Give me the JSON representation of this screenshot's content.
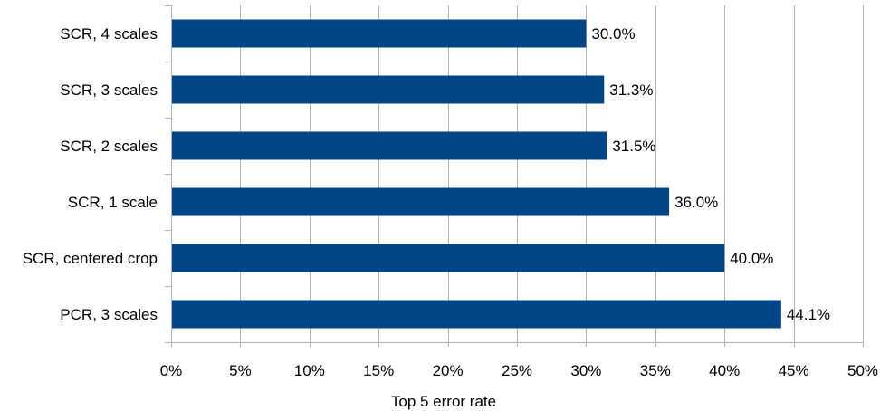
{
  "chart_data": {
    "type": "bar",
    "orientation": "horizontal",
    "categories": [
      "SCR, 4 scales",
      "SCR, 3 scales",
      "SCR, 2 scales",
      "SCR, 1 scale",
      "SCR, centered crop",
      "PCR, 3 scales"
    ],
    "values": [
      0.3,
      0.313,
      0.315,
      0.36,
      0.4,
      0.441
    ],
    "data_labels": [
      "30.0%",
      "31.3%",
      "31.5%",
      "36.0%",
      "40.0%",
      "44.1%"
    ],
    "xlabel": "Top 5 error rate",
    "ylabel": "",
    "xlim": [
      0,
      0.5
    ],
    "x_ticks": [
      0,
      0.05,
      0.1,
      0.15,
      0.2,
      0.25,
      0.3,
      0.35,
      0.4,
      0.45,
      0.5
    ],
    "x_tick_labels": [
      "0%",
      "5%",
      "10%",
      "15%",
      "20%",
      "25%",
      "30%",
      "35%",
      "40%",
      "45%",
      "50%"
    ],
    "grid": "vertical",
    "legend": "none",
    "bar_color": "#004586",
    "grid_color": "#b3b3b3"
  }
}
